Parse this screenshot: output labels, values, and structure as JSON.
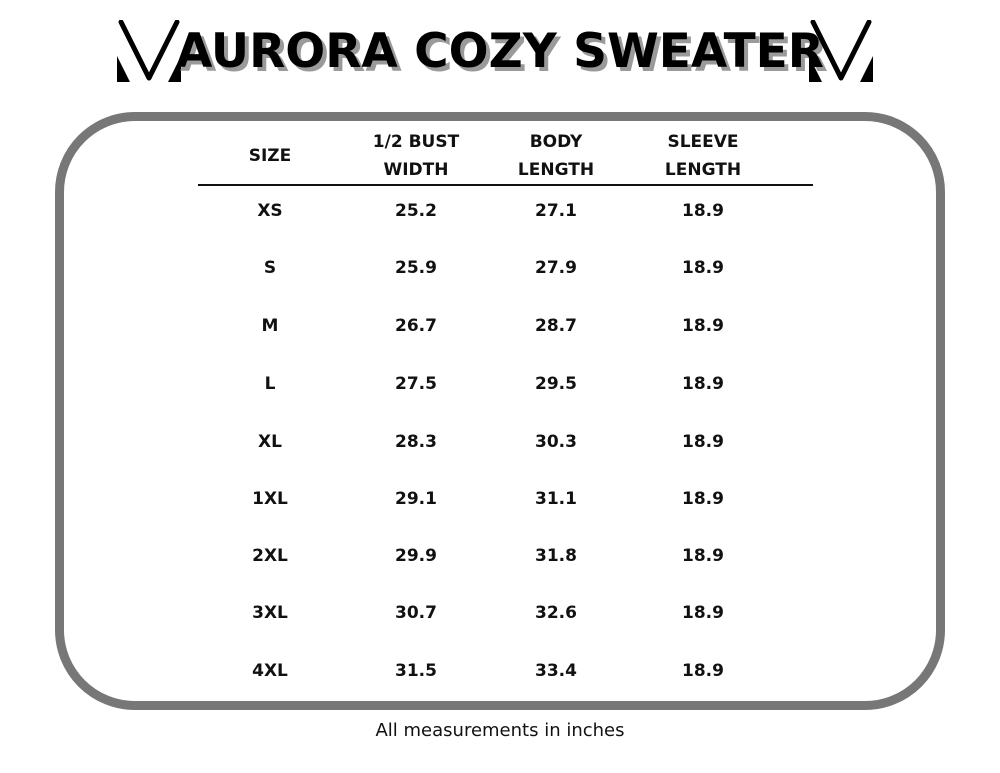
{
  "title": "AURORA COZY SWEATER",
  "logo_icon": "v-monogram-logo",
  "table": {
    "headers": [
      [
        "SIZE"
      ],
      [
        "1/2 BUST",
        "WIDTH"
      ],
      [
        "BODY",
        "LENGTH"
      ],
      [
        "SLEEVE",
        "LENGTH"
      ]
    ],
    "rows": [
      [
        "XS",
        "25.2",
        "27.1",
        "18.9"
      ],
      [
        "S",
        "25.9",
        "27.9",
        "18.9"
      ],
      [
        "M",
        "26.7",
        "28.7",
        "18.9"
      ],
      [
        "L",
        "27.5",
        "29.5",
        "18.9"
      ],
      [
        "XL",
        "28.3",
        "30.3",
        "18.9"
      ],
      [
        "1XL",
        "29.1",
        "31.1",
        "18.9"
      ],
      [
        "2XL",
        "29.9",
        "31.8",
        "18.9"
      ],
      [
        "3XL",
        "30.7",
        "32.6",
        "18.9"
      ],
      [
        "4XL",
        "31.5",
        "33.4",
        "18.9"
      ]
    ]
  },
  "footnote": "All measurements in inches",
  "colors": {
    "border": "#777777",
    "text": "#111111",
    "title_shadow": "#9a9a9a"
  }
}
